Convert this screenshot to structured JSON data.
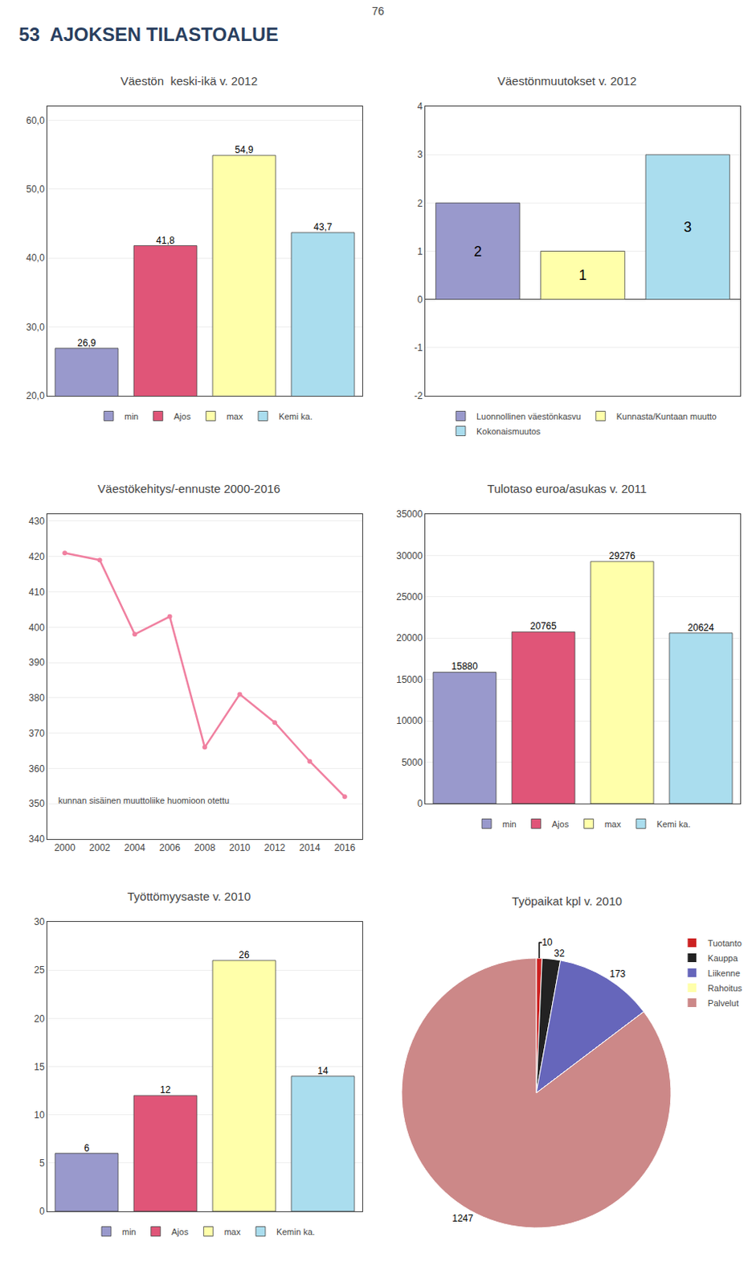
{
  "title": "53  AJOKSEN TILASTOALUE",
  "annotations": [
    "76"
  ],
  "chart_data": [
    {
      "type": "bar",
      "title": "Väestön  keski-ikä v. 2012",
      "categories": [
        "min",
        "Ajos",
        "max",
        "Kemi ka."
      ],
      "values": [
        26.9,
        41.8,
        54.9,
        43.7
      ],
      "value_labels": [
        "26,9",
        "41,8",
        "54,9",
        "43,7"
      ],
      "colors": [
        "#9999cc",
        "#e05578",
        "#ffffaa",
        "#aaddee"
      ],
      "ylim": [
        20,
        62
      ],
      "yticks": [
        {
          "value": 20,
          "label": "20,0"
        },
        {
          "value": 30,
          "label": "30,0"
        },
        {
          "value": 40,
          "label": "40,0"
        },
        {
          "value": 50,
          "label": "50,0"
        },
        {
          "value": 60,
          "label": "60,0"
        }
      ],
      "grid": true,
      "legend": "bottom",
      "data_labels": true,
      "tick_labels": "y"
    },
    {
      "type": "bar",
      "title": "Väestönmuutokset v. 2012",
      "categories": [
        "Luonnollinen väestönkasvu",
        "Kunnasta/Kuntaan muutto",
        "Kokonaismuutos"
      ],
      "values": [
        2,
        1,
        3
      ],
      "colors": [
        "#9999cc",
        "#ffffaa",
        "#aaddee"
      ],
      "ylim": [
        -2,
        4
      ],
      "yticks": [
        -2,
        -1,
        0,
        1,
        2,
        3,
        4
      ],
      "grid": true,
      "legend": "bottom",
      "data_labels": true,
      "tick_labels": "y"
    },
    {
      "type": "line",
      "title": "Väestökehitys/-ennuste 2000-2016",
      "x": [
        2000,
        2002,
        2004,
        2006,
        2008,
        2010,
        2012,
        2014,
        2016
      ],
      "values": [
        421,
        419,
        398,
        403,
        366,
        381,
        373,
        362,
        352
      ],
      "color": "#f080a0",
      "marker": "circle",
      "xlim": [
        1999,
        2017
      ],
      "xticks": [
        2000,
        2002,
        2004,
        2006,
        2008,
        2010,
        2012,
        2014,
        2016
      ],
      "ylim": [
        340,
        432
      ],
      "yticks": [
        340,
        350,
        360,
        370,
        380,
        390,
        400,
        410,
        420,
        430
      ],
      "grid": true,
      "annotations": [
        "kunnan sisäinen muuttoliike huomioon otettu"
      ]
    },
    {
      "type": "bar",
      "title": "Tulotaso euroa/asukas v. 2011",
      "categories": [
        "min",
        "Ajos",
        "max",
        "Kemi ka."
      ],
      "values": [
        15880,
        20765,
        29276,
        20624
      ],
      "colors": [
        "#9999cc",
        "#e05578",
        "#ffffaa",
        "#aaddee"
      ],
      "ylim": [
        0,
        35000
      ],
      "yticks": [
        0,
        5000,
        10000,
        15000,
        20000,
        25000,
        30000,
        35000
      ],
      "grid": true,
      "legend": "bottom",
      "data_labels": true,
      "tick_labels": "y"
    },
    {
      "type": "bar",
      "title": "Työttömyysaste v. 2010",
      "categories": [
        "min",
        "Ajos",
        "max",
        "Kemin ka."
      ],
      "values": [
        6,
        12,
        26,
        14
      ],
      "colors": [
        "#9999cc",
        "#e05578",
        "#ffffaa",
        "#aaddee"
      ],
      "ylim": [
        0,
        30
      ],
      "yticks": [
        0,
        5,
        10,
        15,
        20,
        25,
        30
      ],
      "grid": true,
      "legend": "bottom",
      "data_labels": true,
      "tick_labels": "y"
    },
    {
      "type": "pie",
      "title": "Työpaikat kpl v. 2010",
      "categories": [
        "Tuotanto",
        "Kauppa",
        "Liikenne",
        "Rahoitus",
        "Palvelut"
      ],
      "values": [
        10,
        32,
        173,
        0,
        1247
      ],
      "value_labels": [
        "10",
        "32",
        "173",
        null,
        "1247"
      ],
      "colors": [
        "#cc2222",
        "#222222",
        "#6666bb",
        "#ffffaa",
        "#cc8888"
      ],
      "legend": "right",
      "data_labels": true
    }
  ]
}
